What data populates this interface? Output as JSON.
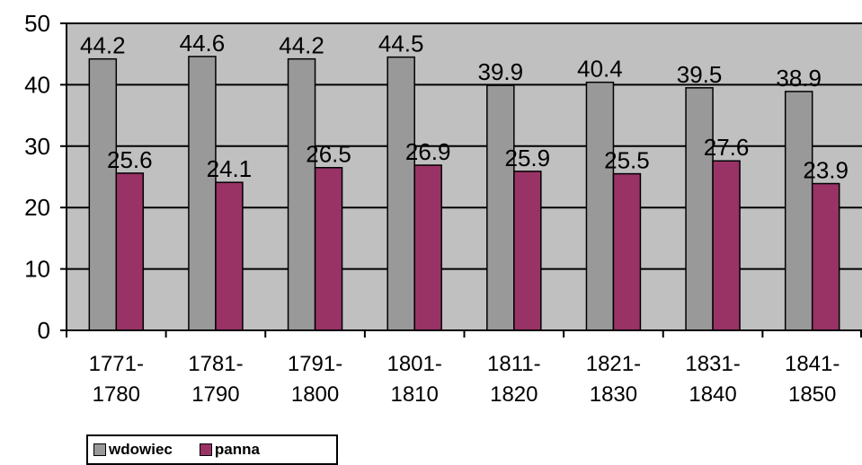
{
  "chart_data": {
    "type": "bar",
    "categories": [
      [
        "1771-",
        "1780"
      ],
      [
        "1781-",
        "1790"
      ],
      [
        "1791-",
        "1800"
      ],
      [
        "1801-",
        "1810"
      ],
      [
        "1811-",
        "1820"
      ],
      [
        "1821-",
        "1830"
      ],
      [
        "1831-",
        "1840"
      ],
      [
        "1841-",
        "1850"
      ]
    ],
    "series": [
      {
        "name": "wdowiec",
        "color": "#999999",
        "values": [
          44.2,
          44.6,
          44.2,
          44.5,
          39.9,
          40.4,
          39.5,
          38.9
        ]
      },
      {
        "name": "panna",
        "color": "#993366",
        "values": [
          25.6,
          24.1,
          26.5,
          26.9,
          25.9,
          25.5,
          27.6,
          23.9
        ]
      }
    ],
    "ylim": [
      0,
      50
    ],
    "yticks": [
      0,
      10,
      20,
      30,
      40,
      50
    ],
    "grid": true,
    "plot_background": "#c0c0c0",
    "legend_position": "bottom-left"
  }
}
